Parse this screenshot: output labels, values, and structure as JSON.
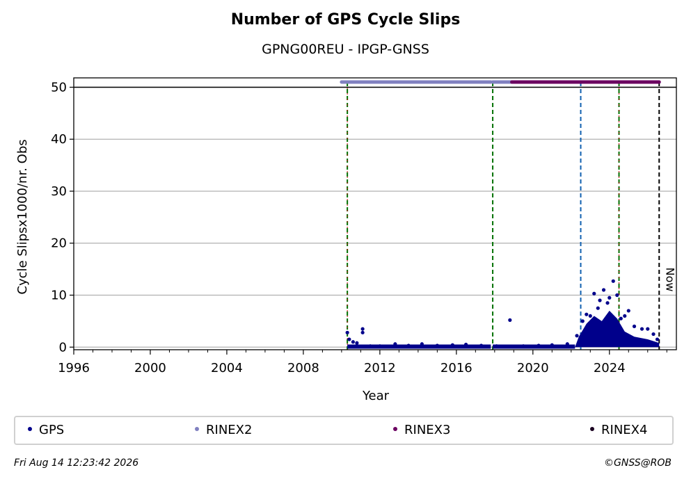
{
  "header": {
    "title": "Number of GPS Cycle Slips",
    "subtitle": "GPNG00REU - IPGP-GNSS"
  },
  "legend": [
    {
      "label": "GPS",
      "color": "#00008b"
    },
    {
      "label": "RINEX2",
      "color": "#8080c0"
    },
    {
      "label": "RINEX3",
      "color": "#6b0060"
    },
    {
      "label": "RINEX4",
      "color": "#1a0020"
    }
  ],
  "footer": {
    "timestamp": "Fri Aug 14 12:23:42 2026",
    "credit": "©GNSS@ROB"
  },
  "chart_data": {
    "type": "scatter",
    "title": "Number of GPS Cycle Slips",
    "subtitle": "GPNG00REU - IPGP-GNSS",
    "xlabel": "Year",
    "ylabel": "Cycle Slipsx1000/nr. Obs",
    "xlim": [
      1996,
      2027.5
    ],
    "ylim": [
      -0.5,
      51.8
    ],
    "x_ticks": [
      1996,
      2000,
      2004,
      2008,
      2012,
      2016,
      2020,
      2024
    ],
    "y_ticks": [
      0,
      10,
      20,
      30,
      40,
      50
    ],
    "grid": "horizontal",
    "legend_position": "bottom",
    "series": [
      {
        "name": "GPS",
        "color": "#00008b",
        "x": [
          2010.3,
          2010.4,
          2010.6,
          2010.8,
          2011.1,
          2011.1,
          2011.5,
          2012.0,
          2012.8,
          2013.5,
          2014.2,
          2015.0,
          2015.8,
          2016.5,
          2017.3,
          2018.1,
          2018.8,
          2019.5,
          2020.3,
          2021.0,
          2021.8,
          2022.3,
          2022.6,
          2022.8,
          2023.0,
          2023.2,
          2023.4,
          2023.5,
          2023.7,
          2023.9,
          2024.0,
          2024.2,
          2024.4,
          2024.6,
          2024.8,
          2025.0,
          2025.3,
          2025.7,
          2026.0,
          2026.3,
          2026.5
        ],
        "y": [
          2.8,
          1.5,
          1.0,
          0.8,
          3.5,
          2.8,
          0.2,
          0.2,
          0.6,
          0.3,
          0.6,
          0.3,
          0.4,
          0.5,
          0.3,
          0.2,
          5.2,
          0.2,
          0.3,
          0.4,
          0.6,
          2.2,
          5.0,
          6.3,
          6.0,
          10.3,
          7.5,
          9.0,
          11.0,
          8.5,
          9.5,
          12.7,
          10.0,
          5.5,
          6.0,
          7.0,
          4.0,
          3.5,
          3.5,
          2.5,
          1.5
        ]
      },
      {
        "name": "RINEX2",
        "color": "#8080c0",
        "x_range": [
          [
            2010.0,
            2017.8
          ],
          [
            2017.9,
            2018.9
          ]
        ],
        "y": 51
      }
    ],
    "annotations": [
      {
        "text": "Now",
        "x": 2026.6
      }
    ],
    "vertical_lines": [
      {
        "x": 2010.3,
        "color": "#007000",
        "style": "dashed"
      },
      {
        "x": 2017.9,
        "color": "#007000",
        "style": "dashed"
      },
      {
        "x": 2022.5,
        "color": "#1060b0",
        "style": "dashed"
      },
      {
        "x": 2024.5,
        "color": "#007000",
        "style": "dashed"
      },
      {
        "x": 2026.6,
        "color": "#000000",
        "style": "dashed"
      }
    ]
  }
}
